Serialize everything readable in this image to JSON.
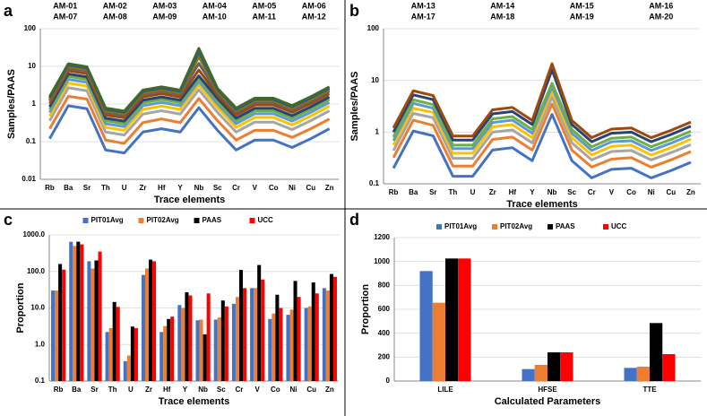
{
  "chart_data": [
    {
      "type": "line",
      "panel": "a",
      "log_scale": true,
      "grid": true,
      "ylabel": "Samples/PAAS",
      "xlabel": "Trace elements",
      "categories": [
        "Rb",
        "Ba",
        "Sr",
        "Th",
        "U",
        "Zr",
        "Hf",
        "Y",
        "Nb",
        "Sc",
        "Cr",
        "V",
        "Co",
        "Ni",
        "Cu",
        "Zn"
      ],
      "ylim": [
        0.01,
        100
      ],
      "yticks": [
        0.01,
        0.1,
        1,
        10,
        100
      ],
      "series": [
        {
          "name": "AM-01",
          "color": "#4472c4",
          "values": [
            0.12,
            0.9,
            0.75,
            0.06,
            0.05,
            0.18,
            0.22,
            0.18,
            0.8,
            0.2,
            0.06,
            0.11,
            0.11,
            0.07,
            0.12,
            0.22
          ]
        },
        {
          "name": "AM-02",
          "color": "#ed7d31",
          "values": [
            0.22,
            1.6,
            1.35,
            0.11,
            0.09,
            0.32,
            0.4,
            0.32,
            1.4,
            0.36,
            0.11,
            0.2,
            0.2,
            0.13,
            0.22,
            0.4
          ]
        },
        {
          "name": "AM-03",
          "color": "#a5a5a5",
          "values": [
            0.36,
            2.7,
            2.25,
            0.18,
            0.15,
            0.54,
            0.66,
            0.54,
            2.4,
            0.6,
            0.18,
            0.33,
            0.33,
            0.21,
            0.36,
            0.66
          ]
        },
        {
          "name": "AM-04",
          "color": "#ffc000",
          "values": [
            0.48,
            3.6,
            3,
            0.24,
            0.2,
            0.72,
            0.88,
            0.72,
            3.2,
            0.8,
            0.24,
            0.44,
            0.44,
            0.28,
            0.48,
            0.88
          ]
        },
        {
          "name": "AM-05",
          "color": "#5b9bd5",
          "values": [
            0.6,
            4.5,
            3.75,
            0.3,
            0.25,
            0.9,
            1.1,
            0.9,
            4,
            1,
            0.3,
            0.55,
            0.55,
            0.35,
            0.6,
            1.1
          ]
        },
        {
          "name": "AM-06",
          "color": "#70ad47",
          "values": [
            0.72,
            5.4,
            4.5,
            0.36,
            0.3,
            1.08,
            1.32,
            1.08,
            4.8,
            1.2,
            0.36,
            0.66,
            0.66,
            0.42,
            0.72,
            1.32
          ]
        },
        {
          "name": "AM-07",
          "color": "#264478",
          "values": [
            0.84,
            6.3,
            5.25,
            0.42,
            0.35,
            1.26,
            1.54,
            1.26,
            5.6,
            1.4,
            0.42,
            0.77,
            0.77,
            0.49,
            0.84,
            1.54
          ]
        },
        {
          "name": "AM-08",
          "color": "#9e480e",
          "values": [
            1.02,
            7.65,
            6.38,
            0.51,
            0.43,
            1.53,
            1.87,
            1.53,
            8,
            1.7,
            0.51,
            0.94,
            0.94,
            0.6,
            1.02,
            1.87
          ]
        },
        {
          "name": "AM-09",
          "color": "#636363",
          "values": [
            1.2,
            9,
            7.5,
            0.6,
            0.5,
            1.8,
            2.2,
            1.8,
            12,
            2,
            0.6,
            1.1,
            1.1,
            0.7,
            1.2,
            2.2
          ]
        },
        {
          "name": "AM-10",
          "color": "#997300",
          "values": [
            1.32,
            9.9,
            8.25,
            0.66,
            0.55,
            1.98,
            2.42,
            1.98,
            18,
            2.2,
            0.66,
            1.21,
            1.21,
            0.77,
            1.32,
            2.42
          ]
        },
        {
          "name": "AM-11",
          "color": "#255e91",
          "values": [
            1.44,
            10.8,
            9,
            0.72,
            0.6,
            2.16,
            2.64,
            2.16,
            24,
            2.4,
            0.72,
            1.32,
            1.32,
            0.84,
            1.44,
            2.64
          ]
        },
        {
          "name": "AM-12",
          "color": "#43682b",
          "values": [
            1.56,
            11.7,
            9.75,
            0.78,
            0.65,
            2.34,
            2.86,
            2.34,
            30,
            2.6,
            0.78,
            1.43,
            1.43,
            0.91,
            1.56,
            2.86
          ]
        }
      ]
    },
    {
      "type": "line",
      "panel": "b",
      "log_scale": true,
      "grid": true,
      "ylabel": "Samples/PAAS",
      "xlabel": "Trace elements",
      "categories": [
        "Rb",
        "Ba",
        "Sr",
        "Th",
        "U",
        "Zr",
        "Hf",
        "Y",
        "Nb",
        "Sc",
        "Cr",
        "V",
        "Co",
        "Ni",
        "Cu",
        "Zn"
      ],
      "ylim": [
        0.1,
        100
      ],
      "yticks": [
        0.1,
        1,
        10,
        100
      ],
      "series": [
        {
          "name": "AM-13",
          "color": "#4472c4",
          "values": [
            0.2,
            1.05,
            0.85,
            0.14,
            0.14,
            0.45,
            0.5,
            0.28,
            2.2,
            0.28,
            0.13,
            0.19,
            0.2,
            0.13,
            0.18,
            0.26
          ]
        },
        {
          "name": "AM-14",
          "color": "#ed7d31",
          "values": [
            0.32,
            1.7,
            1.35,
            0.22,
            0.22,
            0.72,
            0.8,
            0.45,
            3.5,
            0.45,
            0.21,
            0.3,
            0.32,
            0.21,
            0.29,
            0.42
          ]
        },
        {
          "name": "AM-15",
          "color": "#a5a5a5",
          "values": [
            0.44,
            2.3,
            1.9,
            0.31,
            0.31,
            1,
            1.1,
            0.62,
            4.8,
            0.62,
            0.29,
            0.42,
            0.44,
            0.29,
            0.4,
            0.57
          ]
        },
        {
          "name": "AM-16",
          "color": "#ffc000",
          "values": [
            0.56,
            2.9,
            2.4,
            0.39,
            0.39,
            1.26,
            1.4,
            0.78,
            6.2,
            0.78,
            0.36,
            0.53,
            0.56,
            0.36,
            0.5,
            0.73
          ]
        },
        {
          "name": "AM-17",
          "color": "#5b9bd5",
          "values": [
            0.68,
            3.6,
            2.9,
            0.48,
            0.48,
            1.53,
            1.7,
            0.95,
            7.5,
            0.95,
            0.44,
            0.65,
            0.68,
            0.44,
            0.61,
            0.88
          ]
        },
        {
          "name": "AM-18",
          "color": "#70ad47",
          "values": [
            0.8,
            4.2,
            3.4,
            0.56,
            0.56,
            1.8,
            2,
            1.12,
            8.8,
            1.12,
            0.52,
            0.76,
            0.8,
            0.52,
            0.72,
            1.04
          ]
        },
        {
          "name": "AM-19",
          "color": "#264478",
          "values": [
            1,
            5.25,
            4.25,
            0.7,
            0.7,
            2.25,
            2.5,
            1.4,
            16,
            1.4,
            0.65,
            0.95,
            1,
            0.65,
            0.9,
            1.3
          ]
        },
        {
          "name": "AM-20",
          "color": "#9e480e",
          "values": [
            1.2,
            6.3,
            5.1,
            0.84,
            0.84,
            2.7,
            3,
            1.68,
            21,
            1.68,
            0.78,
            1.14,
            1.2,
            0.78,
            1.08,
            1.56
          ]
        }
      ]
    },
    {
      "type": "bar",
      "panel": "c",
      "log_scale": true,
      "grid": true,
      "ylabel": "Proportion",
      "xlabel": "Trace elements",
      "categories": [
        "Rb",
        "Ba",
        "Sr",
        "Th",
        "U",
        "Zr",
        "Hf",
        "Y",
        "Nb",
        "Sc",
        "Cr",
        "V",
        "Co",
        "Ni",
        "Cu",
        "Zn"
      ],
      "ylim": [
        0.1,
        1000
      ],
      "yticks": [
        {
          "value": 0.1,
          "label": "0.1"
        },
        {
          "value": 1,
          "label": "1.0"
        },
        {
          "value": 10,
          "label": "10.0"
        },
        {
          "value": 100,
          "label": "100.0"
        },
        {
          "value": 1000,
          "label": "1000.0"
        }
      ],
      "series": [
        {
          "name": "PIT01Avg",
          "color": "#4472c4",
          "values": [
            30,
            650,
            190,
            2.2,
            0.35,
            80,
            2.2,
            12,
            4.6,
            4.8,
            13,
            35,
            5,
            6.5,
            10,
            35
          ]
        },
        {
          "name": "PIT02Avg",
          "color": "#ed7d31",
          "values": [
            30,
            500,
            120,
            2.8,
            0.5,
            120,
            3.2,
            10,
            4.8,
            5.5,
            20,
            35,
            7,
            9,
            11,
            30
          ]
        },
        {
          "name": "PAAS",
          "color": "#000000",
          "values": [
            160,
            650,
            200,
            14.6,
            3.1,
            210,
            5,
            27,
            1.9,
            16,
            110,
            150,
            23,
            55,
            50,
            85
          ]
        },
        {
          "name": "UCC",
          "color": "#ff0000",
          "values": [
            112,
            550,
            350,
            10.7,
            2.8,
            190,
            5.8,
            22,
            25,
            11,
            35,
            60,
            10,
            20,
            25,
            71
          ]
        }
      ]
    },
    {
      "type": "bar",
      "panel": "d",
      "log_scale": false,
      "grid": true,
      "ylabel": "Proportion",
      "xlabel": "Calculated Parameters",
      "categories": [
        "LILE",
        "HFSE",
        "TTE"
      ],
      "ylim": [
        0,
        1200
      ],
      "yticks": [
        0,
        200,
        400,
        600,
        800,
        1000,
        1200
      ],
      "series": [
        {
          "name": "PIT01Avg",
          "color": "#4472c4",
          "values": [
            920,
            100,
            110
          ]
        },
        {
          "name": "PIT02Avg",
          "color": "#ed7d31",
          "values": [
            655,
            135,
            120
          ]
        },
        {
          "name": "PAAS",
          "color": "#000000",
          "values": [
            1025,
            240,
            485
          ]
        },
        {
          "name": "UCC",
          "color": "#ff0000",
          "values": [
            1025,
            240,
            225
          ]
        }
      ]
    }
  ]
}
